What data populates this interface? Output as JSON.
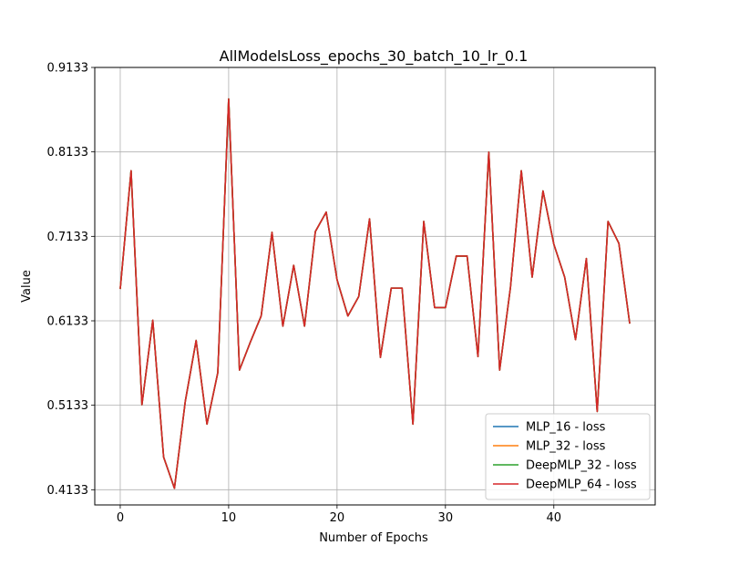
{
  "chart_data": {
    "type": "line",
    "title": "AllModelsLoss_epochs_30_batch_10_lr_0.1",
    "xlabel": "Number of Epochs",
    "ylabel": "Value",
    "xlim": [
      -2.35,
      49.35
    ],
    "ylim": [
      0.3953,
      0.9133
    ],
    "xticks": [
      0,
      10,
      20,
      30,
      40
    ],
    "xtick_labels": [
      "0",
      "10",
      "20",
      "30",
      "40"
    ],
    "yticks": [
      0.4133,
      0.5133,
      0.6133,
      0.7133,
      0.8133,
      0.9133
    ],
    "ytick_labels": [
      "0.4133",
      "0.5133",
      "0.6133",
      "0.7133",
      "0.8133",
      "0.9133"
    ],
    "grid": true,
    "legend_position": "lower-right",
    "x": [
      0,
      1,
      2,
      3,
      4,
      5,
      6,
      7,
      8,
      9,
      10,
      11,
      12,
      13,
      14,
      15,
      16,
      17,
      18,
      19,
      20,
      21,
      22,
      23,
      24,
      25,
      26,
      27,
      28,
      29,
      30,
      31,
      32,
      33,
      34,
      35,
      36,
      37,
      38,
      39,
      40,
      41,
      42,
      43,
      44,
      45,
      46,
      47
    ],
    "series": [
      {
        "name": "MLP_16 - loss",
        "color": "#1f77b4",
        "values": [
          0.651,
          0.791,
          0.514,
          0.614,
          0.452,
          0.415,
          0.518,
          0.59,
          0.491,
          0.552,
          0.876,
          0.555,
          0.588,
          0.619,
          0.718,
          0.607,
          0.679,
          0.607,
          0.719,
          0.742,
          0.662,
          0.619,
          0.642,
          0.734,
          0.57,
          0.652,
          0.652,
          0.491,
          0.731,
          0.629,
          0.629,
          0.69,
          0.69,
          0.571,
          0.813,
          0.555,
          0.653,
          0.791,
          0.665,
          0.767,
          0.704,
          0.665,
          0.591,
          0.687,
          0.506,
          0.731,
          0.705,
          0.61
        ]
      },
      {
        "name": "MLP_32 - loss",
        "color": "#ff7f0e",
        "values": [
          0.651,
          0.791,
          0.514,
          0.614,
          0.452,
          0.415,
          0.518,
          0.59,
          0.491,
          0.552,
          0.876,
          0.555,
          0.588,
          0.619,
          0.718,
          0.607,
          0.679,
          0.607,
          0.719,
          0.742,
          0.662,
          0.619,
          0.642,
          0.734,
          0.57,
          0.652,
          0.652,
          0.491,
          0.731,
          0.629,
          0.629,
          0.69,
          0.69,
          0.571,
          0.813,
          0.555,
          0.653,
          0.791,
          0.665,
          0.767,
          0.704,
          0.665,
          0.591,
          0.687,
          0.506,
          0.731,
          0.705,
          0.61
        ]
      },
      {
        "name": "DeepMLP_32 - loss",
        "color": "#2ca02c",
        "values": [
          0.651,
          0.791,
          0.514,
          0.614,
          0.452,
          0.415,
          0.518,
          0.59,
          0.491,
          0.552,
          0.876,
          0.555,
          0.588,
          0.619,
          0.718,
          0.607,
          0.679,
          0.607,
          0.719,
          0.742,
          0.662,
          0.619,
          0.642,
          0.734,
          0.57,
          0.652,
          0.652,
          0.491,
          0.731,
          0.629,
          0.629,
          0.69,
          0.69,
          0.571,
          0.813,
          0.555,
          0.653,
          0.791,
          0.665,
          0.767,
          0.704,
          0.665,
          0.591,
          0.687,
          0.506,
          0.731,
          0.705,
          0.61
        ]
      },
      {
        "name": "DeepMLP_64 - loss",
        "color": "#d62728",
        "values": [
          0.651,
          0.791,
          0.514,
          0.614,
          0.452,
          0.415,
          0.518,
          0.59,
          0.491,
          0.552,
          0.876,
          0.555,
          0.588,
          0.619,
          0.718,
          0.607,
          0.679,
          0.607,
          0.719,
          0.742,
          0.662,
          0.619,
          0.642,
          0.734,
          0.57,
          0.652,
          0.652,
          0.491,
          0.731,
          0.629,
          0.629,
          0.69,
          0.69,
          0.571,
          0.813,
          0.555,
          0.653,
          0.791,
          0.665,
          0.767,
          0.704,
          0.665,
          0.591,
          0.687,
          0.506,
          0.731,
          0.705,
          0.61
        ]
      }
    ]
  }
}
